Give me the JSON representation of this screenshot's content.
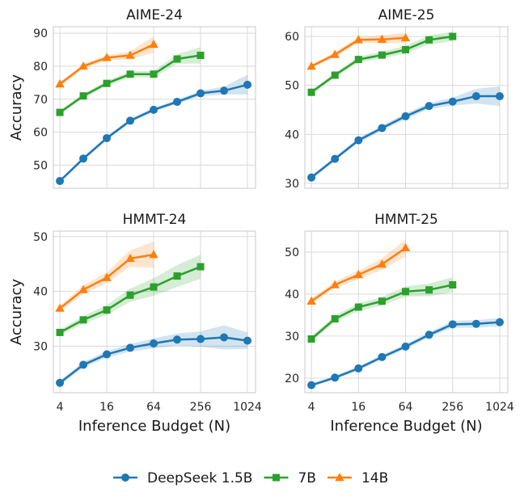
{
  "chart_data": {
    "type": "line",
    "xscale": "log2",
    "x_tick_labels": [
      "4",
      "16",
      "64",
      "256",
      "1024"
    ],
    "xlabel": "Inference Budget (N)",
    "ylabel": "Accuracy",
    "legend": {
      "placement": "bottom-center",
      "entries": [
        "DeepSeek 1.5B",
        "7B",
        "14B"
      ]
    },
    "colors": {
      "DeepSeek 1.5B": "#1f77b4",
      "7B": "#2ca02c",
      "14B": "#ff7f0e"
    },
    "panels": [
      {
        "title": "AIME-24",
        "ylim": [
          43,
          92
        ],
        "yticks": [
          50,
          60,
          70,
          80,
          90
        ],
        "series": [
          {
            "name": "DeepSeek 1.5B",
            "marker": "circle",
            "x": [
              4,
              8,
              16,
              32,
              64,
              128,
              256,
              512,
              1024
            ],
            "y": [
              45.2,
              52.0,
              58.2,
              63.5,
              66.8,
              69.2,
              71.8,
              72.6,
              74.4
            ],
            "band": [
              0.5,
              0.6,
              0.6,
              0.6,
              0.6,
              0.6,
              0.8,
              1.2,
              3.0
            ]
          },
          {
            "name": "7B",
            "marker": "square",
            "x": [
              4,
              8,
              16,
              32,
              64,
              128,
              256
            ],
            "y": [
              66.0,
              71.0,
              74.8,
              77.6,
              77.6,
              82.2,
              83.3
            ],
            "band": [
              0.6,
              0.7,
              0.8,
              0.9,
              1.0,
              1.4,
              2.5
            ]
          },
          {
            "name": "14B",
            "marker": "triangle",
            "x": [
              4,
              8,
              16,
              32,
              64
            ],
            "y": [
              74.6,
              80.0,
              82.6,
              83.3,
              86.6
            ],
            "band": [
              0.6,
              0.7,
              0.8,
              1.2,
              2.5
            ]
          }
        ]
      },
      {
        "title": "AIME-25",
        "ylim": [
          29,
          62
        ],
        "yticks": [
          30,
          40,
          50,
          60
        ],
        "series": [
          {
            "name": "DeepSeek 1.5B",
            "marker": "circle",
            "x": [
              4,
              8,
              16,
              32,
              64,
              128,
              256,
              512,
              1024
            ],
            "y": [
              31.2,
              35.0,
              38.8,
              41.3,
              43.7,
              45.8,
              46.7,
              47.8,
              47.8
            ],
            "band": [
              0.4,
              0.4,
              0.5,
              0.5,
              0.6,
              0.6,
              0.8,
              1.5,
              2.0
            ]
          },
          {
            "name": "7B",
            "marker": "square",
            "x": [
              4,
              8,
              16,
              32,
              64,
              128,
              256
            ],
            "y": [
              48.6,
              52.1,
              55.3,
              56.2,
              57.3,
              59.3,
              60.0
            ],
            "band": [
              0.4,
              0.5,
              0.6,
              0.7,
              0.8,
              0.9,
              1.0
            ]
          },
          {
            "name": "14B",
            "marker": "triangle",
            "x": [
              4,
              8,
              16,
              32,
              64
            ],
            "y": [
              53.9,
              56.3,
              59.3,
              59.4,
              59.7
            ],
            "band": [
              0.4,
              0.5,
              0.6,
              0.8,
              1.0
            ]
          }
        ]
      },
      {
        "title": "HMMT-24",
        "ylim": [
          21.5,
          51
        ],
        "yticks": [
          30,
          40,
          50
        ],
        "series": [
          {
            "name": "DeepSeek 1.5B",
            "marker": "circle",
            "x": [
              4,
              8,
              16,
              32,
              64,
              128,
              256,
              512,
              1024
            ],
            "y": [
              23.3,
              26.6,
              28.5,
              29.7,
              30.5,
              31.2,
              31.3,
              31.6,
              31.0
            ],
            "band": [
              0.4,
              0.5,
              0.6,
              0.7,
              0.9,
              1.1,
              1.4,
              2.2,
              1.5
            ]
          },
          {
            "name": "7B",
            "marker": "square",
            "x": [
              4,
              8,
              16,
              32,
              64,
              128,
              256
            ],
            "y": [
              32.5,
              34.8,
              36.6,
              39.3,
              40.8,
              42.8,
              44.5
            ],
            "band": [
              0.5,
              0.7,
              0.9,
              1.2,
              1.6,
              2.0,
              2.2
            ]
          },
          {
            "name": "14B",
            "marker": "triangle",
            "x": [
              4,
              8,
              16,
              32,
              64
            ],
            "y": [
              36.9,
              40.3,
              42.5,
              46.0,
              46.7
            ],
            "band": [
              0.5,
              0.8,
              1.0,
              1.5,
              2.4
            ]
          }
        ]
      },
      {
        "title": "HMMT-25",
        "ylim": [
          16.5,
          55
        ],
        "yticks": [
          20,
          30,
          40,
          50
        ],
        "series": [
          {
            "name": "DeepSeek 1.5B",
            "marker": "circle",
            "x": [
              4,
              8,
              16,
              32,
              64,
              128,
              256,
              512,
              1024
            ],
            "y": [
              18.3,
              20.1,
              22.3,
              25.0,
              27.5,
              30.3,
              32.8,
              32.9,
              33.3
            ],
            "band": [
              0.4,
              0.4,
              0.5,
              0.5,
              0.6,
              0.6,
              0.8,
              0.9,
              1.0
            ]
          },
          {
            "name": "7B",
            "marker": "square",
            "x": [
              4,
              8,
              16,
              32,
              64,
              128,
              256
            ],
            "y": [
              29.3,
              34.1,
              36.9,
              38.3,
              40.6,
              41.0,
              42.2
            ],
            "band": [
              0.6,
              0.8,
              0.9,
              1.0,
              1.2,
              1.5,
              1.8
            ]
          },
          {
            "name": "14B",
            "marker": "triangle",
            "x": [
              4,
              8,
              16,
              32,
              64
            ],
            "y": [
              38.3,
              42.2,
              44.6,
              47.1,
              51.0
            ],
            "band": [
              0.6,
              0.8,
              1.0,
              1.4,
              2.0
            ]
          }
        ]
      }
    ]
  }
}
